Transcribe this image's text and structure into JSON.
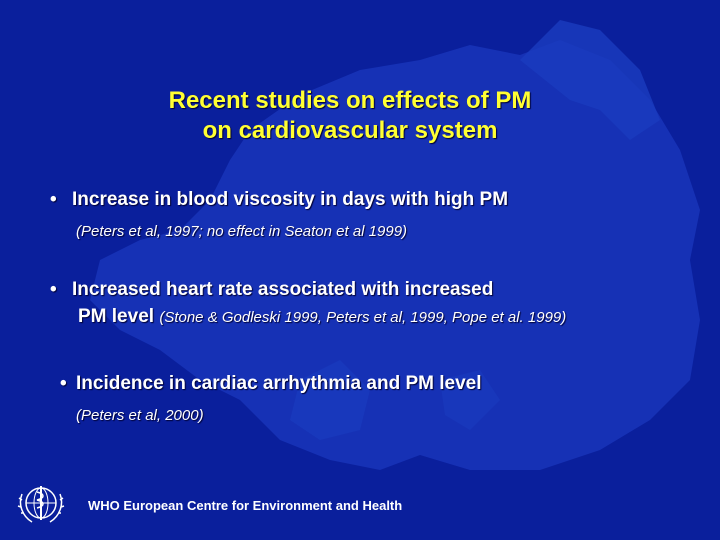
{
  "slide": {
    "title_line1": "Recent studies on effects of PM",
    "title_line2": "on cardiovascular system",
    "bullet_symbol": "•",
    "bullets": [
      {
        "text": "Increase in blood viscosity in days with high PM",
        "citation": "(Peters et al, 1997; no effect in Seaton et al 1999)"
      },
      {
        "text_line1": "Increased heart rate associated with increased",
        "text_line2": "PM level",
        "citation": "(Stone & Godleski 1999, Peters et al, 1999, Pope et al. 1999)"
      },
      {
        "text": "Incidence in cardiac arrhythmia and PM level",
        "citation": "(Peters et al, 2000)"
      }
    ],
    "footer": "WHO European Centre for Environment and Health",
    "logo_icon": "who-emblem-icon",
    "colors": {
      "background": "#0a1f9c",
      "map": "#1a3cbf",
      "title": "#ffff33",
      "text": "#ffffff"
    }
  }
}
